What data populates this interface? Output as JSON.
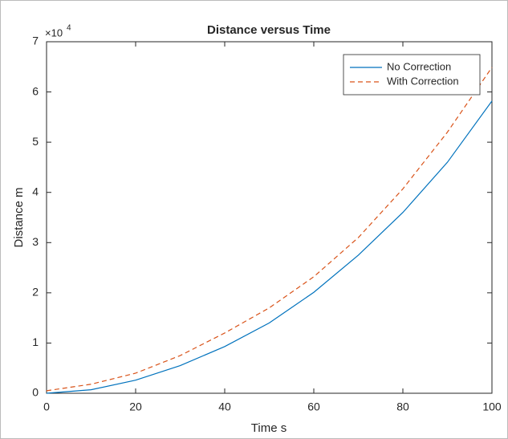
{
  "chart_data": {
    "type": "line",
    "title": "Distance versus Time",
    "xlabel": "Time s",
    "ylabel": "Distance m",
    "y_multiplier": {
      "base": "×10",
      "exponent": "4"
    },
    "x": [
      0,
      10,
      20,
      30,
      40,
      50,
      60,
      70,
      80,
      90,
      100
    ],
    "series": [
      {
        "name": "No Correction",
        "color": "#0072BD",
        "dash": "solid",
        "values": [
          0,
          0.07,
          0.26,
          0.55,
          0.93,
          1.4,
          2.01,
          2.75,
          3.6,
          4.6,
          5.82
        ]
      },
      {
        "name": "With Correction",
        "color": "#D95319",
        "dash": "dashed",
        "values": [
          0.05,
          0.18,
          0.4,
          0.75,
          1.2,
          1.7,
          2.32,
          3.1,
          4.07,
          5.2,
          6.49
        ]
      }
    ],
    "xlim": [
      0,
      100
    ],
    "xticks": [
      0,
      20,
      40,
      60,
      80,
      100
    ],
    "ylim": [
      0,
      7
    ],
    "yticks": [
      0,
      1,
      2,
      3,
      4,
      5,
      6,
      7
    ],
    "grid": false,
    "box": true,
    "legend": "top-right"
  }
}
